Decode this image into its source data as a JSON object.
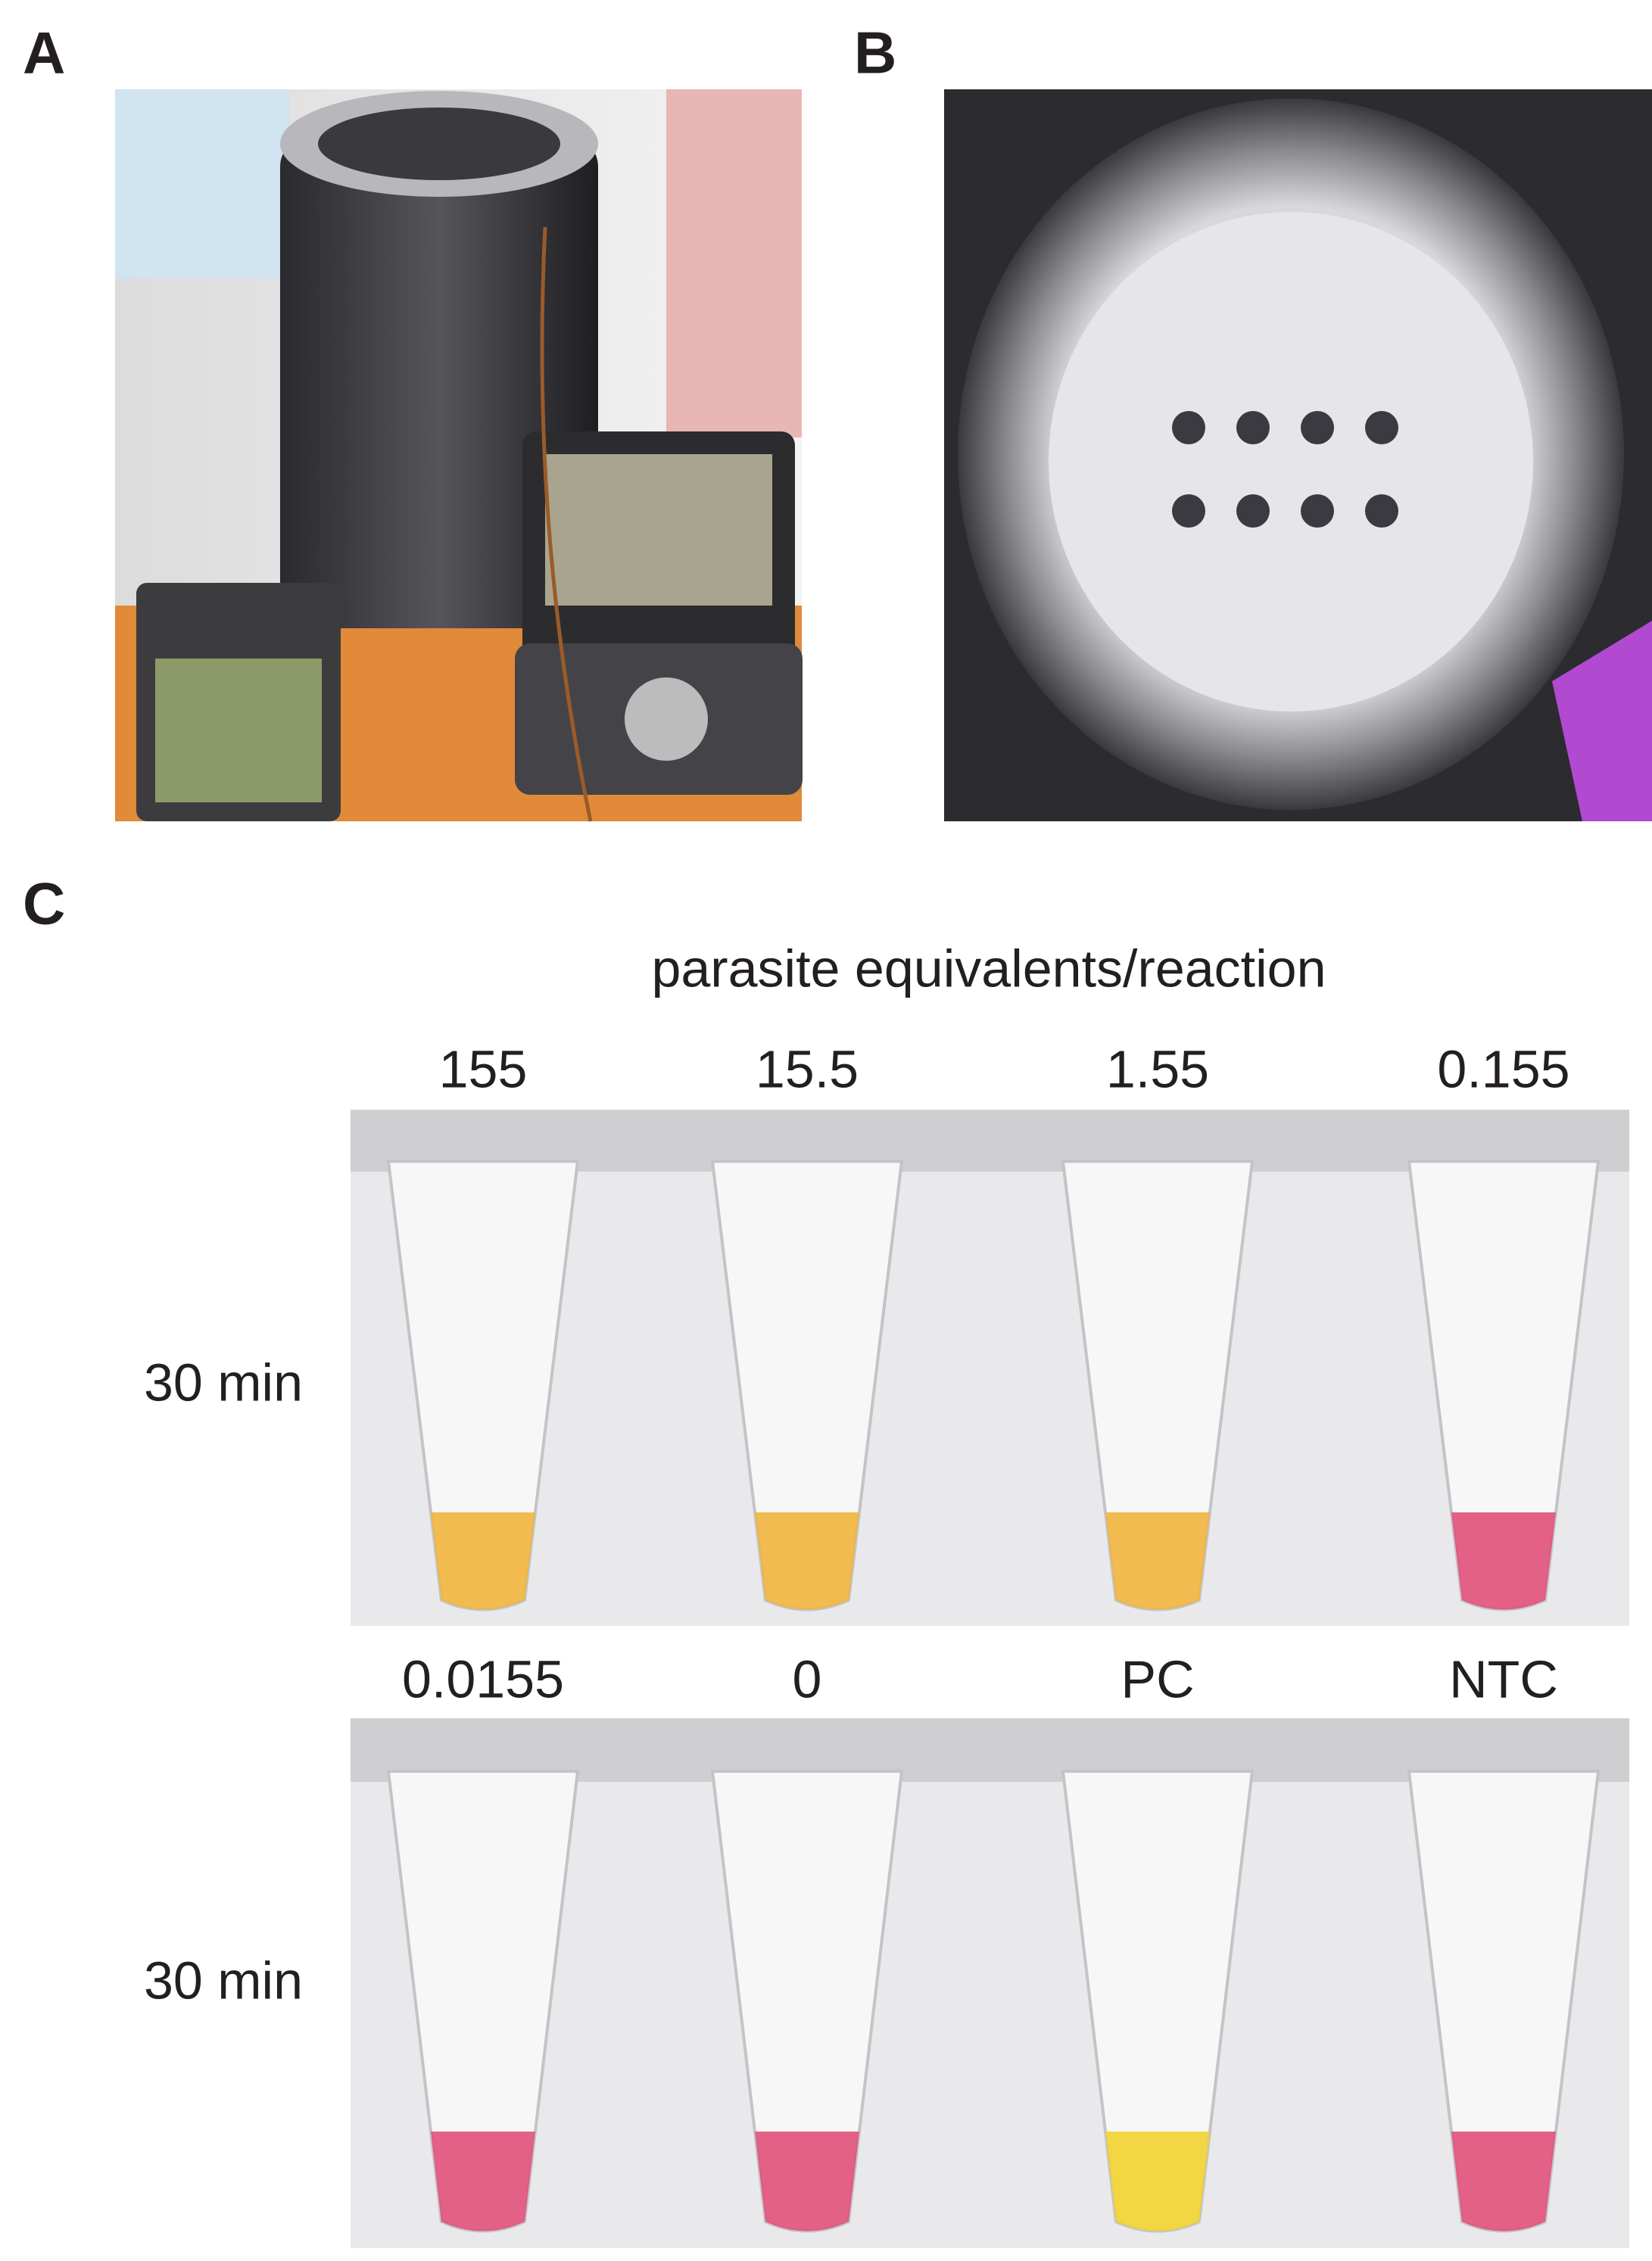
{
  "panels": {
    "a": {
      "label": "A"
    },
    "b": {
      "label": "B"
    },
    "c": {
      "label": "C",
      "title": "parasite equivalents/reaction",
      "rows": [
        {
          "time": "30 min",
          "columns": [
            "155",
            "15.5",
            "1.55",
            "0.155"
          ]
        },
        {
          "time": "30 min",
          "columns": [
            "0.0155",
            "0",
            "PC",
            "NTC"
          ]
        }
      ]
    }
  }
}
